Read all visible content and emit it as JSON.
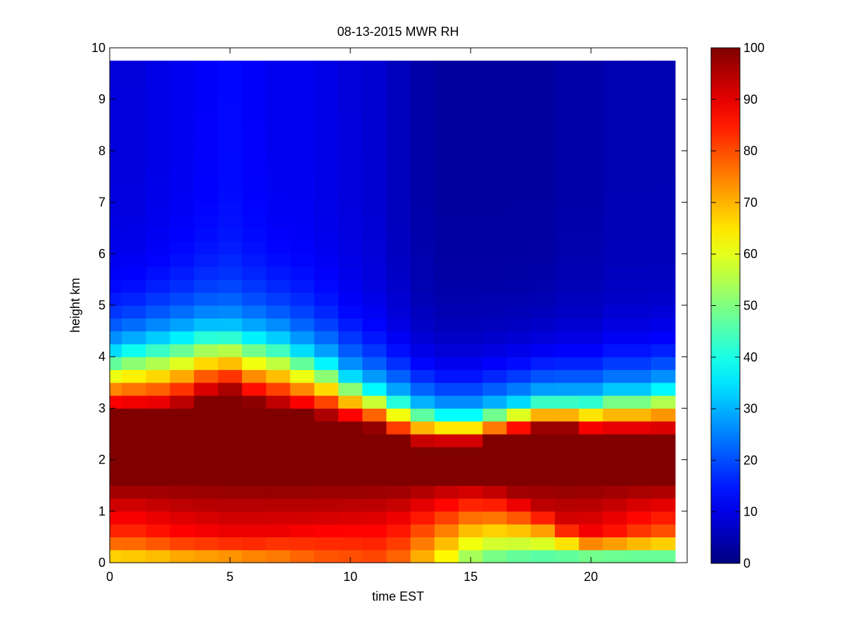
{
  "chart_data": {
    "type": "heatmap",
    "title": "08-13-2015 MWR RH",
    "xlabel": "time EST",
    "ylabel": "height km",
    "xlim": [
      0,
      24
    ],
    "ylim": [
      0,
      10
    ],
    "x_ticks": [
      0,
      5,
      10,
      15,
      20
    ],
    "y_ticks": [
      0,
      1,
      2,
      3,
      4,
      5,
      6,
      7,
      8,
      9,
      10
    ],
    "colorbar": {
      "min": 0,
      "max": 100,
      "ticks": [
        0,
        10,
        20,
        30,
        40,
        50,
        60,
        70,
        80,
        90,
        100
      ],
      "colormap": "jet"
    },
    "grid": false,
    "x_step": 1,
    "y_step": 0.25,
    "x_start": 0,
    "x_end": 23.5,
    "y_top": 9.75,
    "times": [
      0,
      1,
      2,
      3,
      4,
      5,
      6,
      7,
      8,
      9,
      10,
      11,
      12,
      13,
      14,
      15,
      16,
      17,
      18,
      19,
      20,
      21,
      22,
      23
    ],
    "profiles": [
      {
        "sfc": 62,
        "low": 82,
        "moist_top": 2.9,
        "top": 4.1,
        "aloft": 9
      },
      {
        "sfc": 63,
        "low": 82,
        "moist_top": 2.9,
        "top": 4.2,
        "aloft": 9
      },
      {
        "sfc": 64,
        "low": 84,
        "moist_top": 2.9,
        "top": 4.3,
        "aloft": 10
      },
      {
        "sfc": 66,
        "low": 86,
        "moist_top": 3.0,
        "top": 4.4,
        "aloft": 11
      },
      {
        "sfc": 67,
        "low": 87,
        "moist_top": 3.2,
        "top": 4.5,
        "aloft": 12
      },
      {
        "sfc": 68,
        "low": 88,
        "moist_top": 3.3,
        "top": 4.5,
        "aloft": 13
      },
      {
        "sfc": 70,
        "low": 88,
        "moist_top": 3.1,
        "top": 4.4,
        "aloft": 12
      },
      {
        "sfc": 72,
        "low": 89,
        "moist_top": 3.0,
        "top": 4.3,
        "aloft": 11
      },
      {
        "sfc": 75,
        "low": 90,
        "moist_top": 2.9,
        "top": 4.1,
        "aloft": 11
      },
      {
        "sfc": 77,
        "low": 91,
        "moist_top": 2.8,
        "top": 3.9,
        "aloft": 10
      },
      {
        "sfc": 78,
        "low": 92,
        "moist_top": 2.7,
        "top": 3.6,
        "aloft": 9
      },
      {
        "sfc": 79,
        "low": 93,
        "moist_top": 2.6,
        "top": 3.4,
        "aloft": 8
      },
      {
        "sfc": 76,
        "low": 95,
        "moist_top": 2.4,
        "top": 3.2,
        "aloft": 6
      },
      {
        "sfc": 68,
        "low": 97,
        "moist_top": 2.3,
        "top": 3.0,
        "aloft": 4
      },
      {
        "sfc": 60,
        "low": 98,
        "moist_top": 2.3,
        "top": 2.9,
        "aloft": 3
      },
      {
        "sfc": 50,
        "low": 98,
        "moist_top": 2.3,
        "top": 2.9,
        "aloft": 3
      },
      {
        "sfc": 45,
        "low": 97,
        "moist_top": 2.4,
        "top": 3.0,
        "aloft": 3
      },
      {
        "sfc": 42,
        "low": 95,
        "moist_top": 2.5,
        "top": 3.1,
        "aloft": 3
      },
      {
        "sfc": 40,
        "low": 93,
        "moist_top": 2.6,
        "top": 3.2,
        "aloft": 3
      },
      {
        "sfc": 38,
        "low": 90,
        "moist_top": 2.6,
        "top": 3.2,
        "aloft": 4
      },
      {
        "sfc": 36,
        "low": 87,
        "moist_top": 2.5,
        "top": 3.2,
        "aloft": 4
      },
      {
        "sfc": 36,
        "low": 84,
        "moist_top": 2.5,
        "top": 3.3,
        "aloft": 5
      },
      {
        "sfc": 37,
        "low": 80,
        "moist_top": 2.5,
        "top": 3.3,
        "aloft": 5
      },
      {
        "sfc": 38,
        "low": 77,
        "moist_top": 2.5,
        "top": 3.4,
        "aloft": 5
      }
    ]
  }
}
